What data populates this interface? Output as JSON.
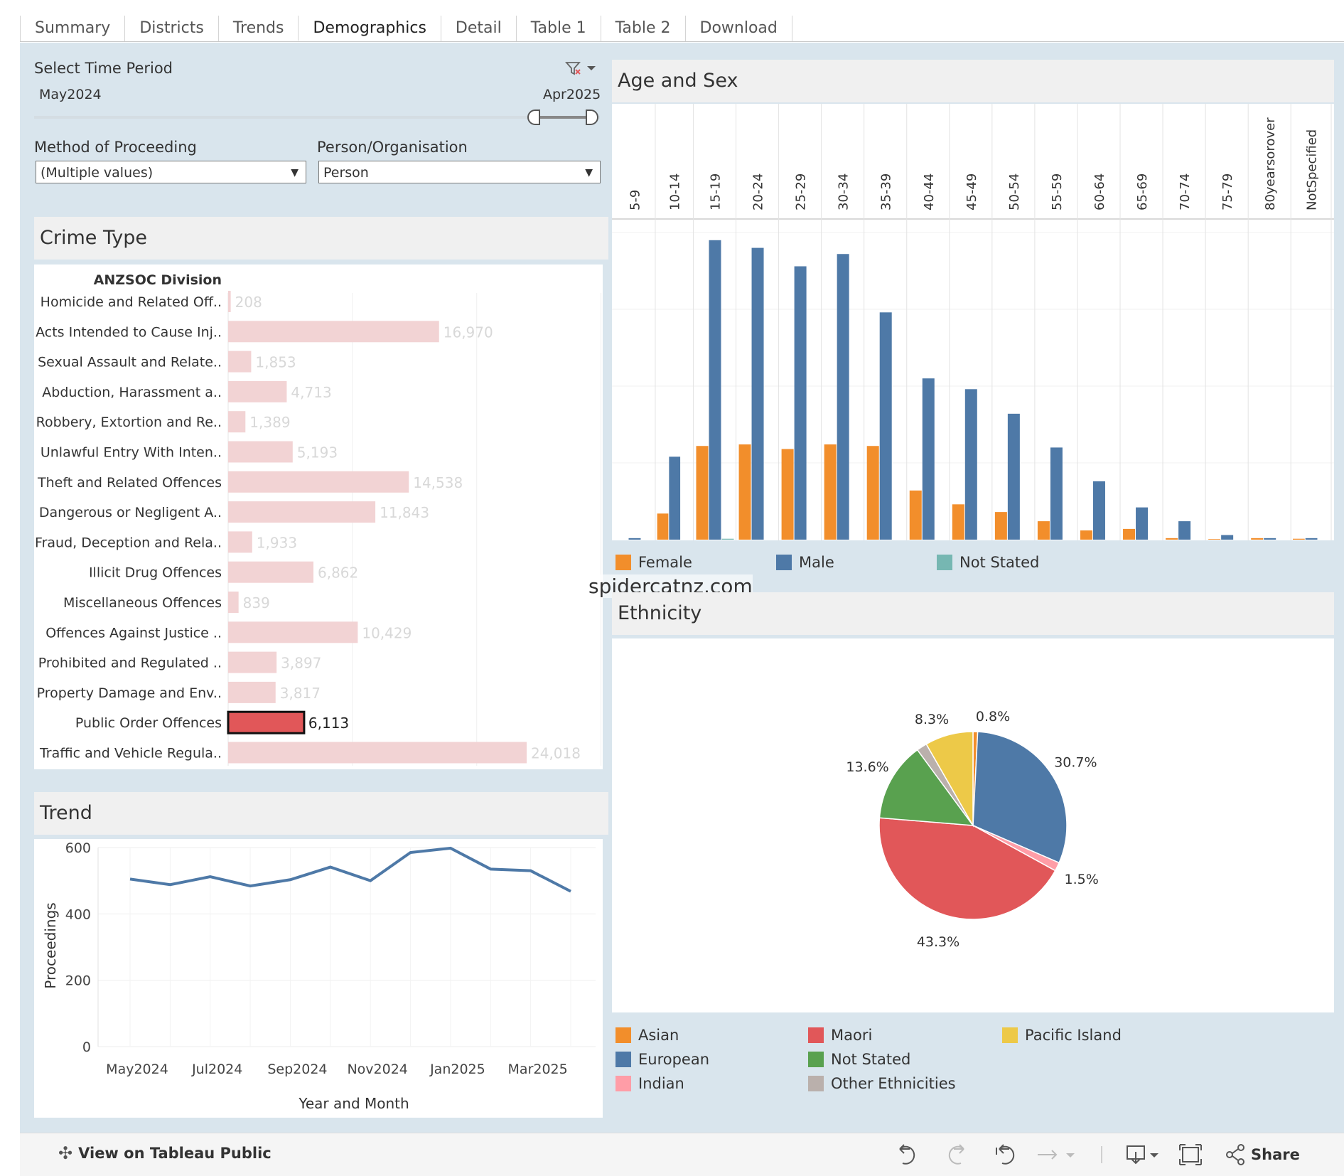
{
  "tabs": [
    {
      "label": "Summary"
    },
    {
      "label": "Districts"
    },
    {
      "label": "Trends"
    },
    {
      "label": "Demographics"
    },
    {
      "label": "Detail"
    },
    {
      "label": "Table 1"
    },
    {
      "label": "Table 2"
    },
    {
      "label": "Download"
    }
  ],
  "filters": {
    "time_period_label": "Select Time Period",
    "start": "May2024",
    "end": "Apr2025",
    "method_label": "Method of Proceeding",
    "method_value": "(Multiple values)",
    "person_label": "Person/Organisation",
    "person_value": "Person"
  },
  "crime_type": {
    "title": "Crime Type",
    "header": "ANZSOC Division",
    "highlight_color": "#e15759",
    "bar_color": "#f2d3d4",
    "rows": [
      {
        "label": "Homicide and Related Off..",
        "value": 208,
        "text": "208"
      },
      {
        "label": "Acts Intended to Cause Inj..",
        "value": 16970,
        "text": "16,970"
      },
      {
        "label": "Sexual Assault and Relate..",
        "value": 1853,
        "text": "1,853"
      },
      {
        "label": "Abduction, Harassment a..",
        "value": 4713,
        "text": "4,713"
      },
      {
        "label": "Robbery, Extortion and Re..",
        "value": 1389,
        "text": "1,389"
      },
      {
        "label": "Unlawful Entry With Inten..",
        "value": 5193,
        "text": "5,193"
      },
      {
        "label": "Theft and Related Offences",
        "value": 14538,
        "text": "14,538"
      },
      {
        "label": "Dangerous or Negligent A..",
        "value": 11843,
        "text": "11,843"
      },
      {
        "label": "Fraud, Deception and Rela..",
        "value": 1933,
        "text": "1,933"
      },
      {
        "label": "Illicit Drug Offences",
        "value": 6862,
        "text": "6,862"
      },
      {
        "label": "Miscellaneous Offences",
        "value": 839,
        "text": "839"
      },
      {
        "label": "Offences Against Justice ..",
        "value": 10429,
        "text": "10,429"
      },
      {
        "label": "Prohibited and Regulated ..",
        "value": 3897,
        "text": "3,897"
      },
      {
        "label": "Property Damage and Env..",
        "value": 3817,
        "text": "3,817"
      },
      {
        "label": "Public Order Offences",
        "value": 6113,
        "text": "6,113",
        "selected": true
      },
      {
        "label": "Traffic and Vehicle Regula..",
        "value": 24018,
        "text": "24,018"
      }
    ]
  },
  "trend": {
    "title": "Trend",
    "chart_data": {
      "type": "line",
      "xlabel": "Year and Month",
      "ylabel": "Proceedings",
      "ylim": [
        0,
        600
      ],
      "yticks": [
        0,
        200,
        400,
        600
      ],
      "x": [
        "May2024",
        "Jun2024",
        "Jul2024",
        "Aug2024",
        "Sep2024",
        "Oct2024",
        "Nov2024",
        "Dec2024",
        "Jan2025",
        "Feb2025",
        "Mar2025",
        "Apr2025"
      ],
      "xtick_labels": [
        "May2024",
        "Jul2024",
        "Sep2024",
        "Nov2024",
        "Jan2025",
        "Mar2025"
      ],
      "values": [
        505,
        488,
        512,
        484,
        503,
        541,
        500,
        585,
        598,
        535,
        530,
        468
      ],
      "color": "#4e79a7"
    }
  },
  "age_sex": {
    "title": "Age and Sex",
    "chart_data": {
      "type": "bar",
      "categories": [
        "5-9",
        "10-14",
        "15-19",
        "20-24",
        "25-29",
        "30-34",
        "35-39",
        "40-44",
        "45-49",
        "50-54",
        "55-59",
        "60-64",
        "65-69",
        "70-74",
        "75-79",
        "80yearsorover",
        "NotSpecified"
      ],
      "ylim": [
        0,
        1000
      ],
      "series": [
        {
          "name": "Female",
          "color": "#f28e2b",
          "values": [
            0,
            85,
            305,
            310,
            295,
            310,
            305,
            160,
            115,
            90,
            60,
            30,
            35,
            5,
            2,
            5,
            3
          ]
        },
        {
          "name": "Male",
          "color": "#4e79a7",
          "values": [
            5,
            270,
            975,
            950,
            890,
            930,
            740,
            525,
            490,
            410,
            300,
            190,
            105,
            60,
            15,
            5,
            5
          ]
        },
        {
          "name": "Not Stated",
          "color": "#76b7b2",
          "values": [
            0,
            0,
            3,
            0,
            0,
            0,
            0,
            0,
            0,
            0,
            0,
            0,
            0,
            0,
            0,
            0,
            0
          ]
        }
      ]
    },
    "legend": [
      {
        "label": "Female",
        "color": "#f28e2b"
      },
      {
        "label": "Male",
        "color": "#4e79a7"
      },
      {
        "label": "Not Stated",
        "color": "#76b7b2"
      }
    ]
  },
  "watermark": "spidercatnz.com",
  "ethnicity": {
    "title": "Ethnicity",
    "chart_data": {
      "type": "pie",
      "slices": [
        {
          "name": "Asian",
          "value": 0.8,
          "color": "#f28e2b",
          "label": "0.8%"
        },
        {
          "name": "European",
          "value": 30.7,
          "color": "#4e79a7",
          "label": "30.7%"
        },
        {
          "name": "Indian",
          "value": 1.5,
          "color": "#ff9da7",
          "label": "1.5%"
        },
        {
          "name": "Maori",
          "value": 43.3,
          "color": "#e15759",
          "label": "43.3%"
        },
        {
          "name": "Not Stated",
          "value": 13.6,
          "color": "#59a14f",
          "label": "13.6%"
        },
        {
          "name": "Other Ethnicities",
          "value": 1.8,
          "color": "#bab0ac",
          "label": ""
        },
        {
          "name": "Pacific Island",
          "value": 8.3,
          "color": "#edc948",
          "label": "8.3%"
        }
      ]
    },
    "legend": [
      {
        "label": "Asian",
        "color": "#f28e2b"
      },
      {
        "label": "European",
        "color": "#4e79a7"
      },
      {
        "label": "Indian",
        "color": "#ff9da7"
      },
      {
        "label": "Maori",
        "color": "#e15759"
      },
      {
        "label": "Not Stated",
        "color": "#59a14f"
      },
      {
        "label": "Other Ethnicities",
        "color": "#bab0ac"
      },
      {
        "label": "Pacific Island",
        "color": "#edc948"
      }
    ]
  },
  "footer": {
    "view_label": "View on Tableau Public",
    "share_label": "Share"
  }
}
